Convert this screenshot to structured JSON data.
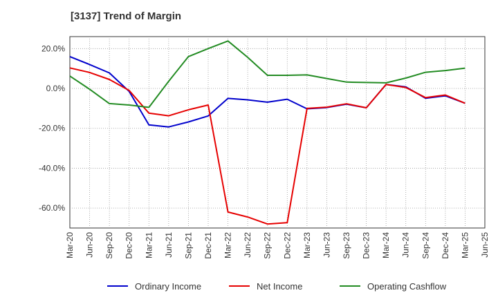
{
  "chart_data": {
    "type": "line",
    "title": "[3137]  Trend of Margin",
    "xlabel": "",
    "ylabel": "",
    "x": [
      "Mar-20",
      "Jun-20",
      "Sep-20",
      "Dec-20",
      "Mar-21",
      "Jun-21",
      "Sep-21",
      "Dec-21",
      "Mar-22",
      "Jun-22",
      "Sep-22",
      "Dec-22",
      "Mar-23",
      "Jun-23",
      "Sep-23",
      "Dec-23",
      "Mar-24",
      "Jun-24",
      "Sep-24",
      "Dec-24",
      "Mar-25",
      "Jun-25"
    ],
    "ylim": [
      -70,
      26
    ],
    "yticks": [
      20,
      0,
      -20,
      -40,
      -60
    ],
    "ytick_labels": [
      "20.0%",
      "0.0%",
      "-20.0%",
      "-40.0%",
      "-60.0%"
    ],
    "grid": true,
    "legend_position": "bottom",
    "series": [
      {
        "name": "Ordinary Income",
        "color": "#0000cc",
        "values": [
          16.0,
          12.0,
          7.8,
          -1.5,
          -18.3,
          -19.3,
          -16.8,
          -13.8,
          -5.0,
          -5.7,
          -6.9,
          -5.4,
          -10.2,
          -9.6,
          -7.9,
          -9.7,
          2.0,
          0.8,
          -4.9,
          -3.7,
          -7.4,
          null
        ]
      },
      {
        "name": "Net Income",
        "color": "#e60000",
        "values": [
          10.3,
          8.0,
          4.5,
          -1.0,
          -12.4,
          -13.7,
          -10.7,
          -8.3,
          -62.0,
          -64.5,
          -68.0,
          -67.3,
          -10.0,
          -9.4,
          -7.7,
          -9.7,
          2.0,
          0.5,
          -4.6,
          -3.3,
          -7.4,
          null
        ]
      },
      {
        "name": "Operating Cashflow",
        "color": "#228b22",
        "values": [
          6.2,
          -0.4,
          -7.6,
          -8.3,
          -9.5,
          3.6,
          16.0,
          20.0,
          23.8,
          15.6,
          6.6,
          6.6,
          6.8,
          5.0,
          3.2,
          3.0,
          2.8,
          5.2,
          8.1,
          9.0,
          10.2,
          null
        ]
      }
    ]
  }
}
